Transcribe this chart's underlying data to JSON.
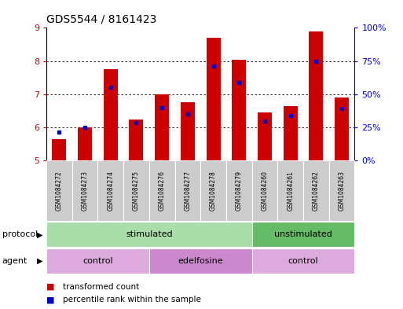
{
  "title": "GDS5544 / 8161423",
  "samples": [
    "GSM1084272",
    "GSM1084273",
    "GSM1084274",
    "GSM1084275",
    "GSM1084276",
    "GSM1084277",
    "GSM1084278",
    "GSM1084279",
    "GSM1084260",
    "GSM1084261",
    "GSM1084262",
    "GSM1084263"
  ],
  "red_values": [
    5.65,
    6.0,
    7.75,
    6.25,
    7.0,
    6.75,
    8.7,
    8.05,
    6.45,
    6.65,
    8.9,
    6.9
  ],
  "blue_values": [
    5.85,
    6.0,
    7.2,
    6.15,
    6.6,
    6.4,
    7.85,
    7.35,
    6.2,
    6.35,
    7.98,
    6.58
  ],
  "ymin": 5,
  "ymax": 9,
  "right_yticks": [
    0,
    25,
    50,
    75,
    100
  ],
  "right_yticklabels": [
    "0%",
    "25%",
    "50%",
    "75%",
    "100%"
  ],
  "bar_color": "#cc0000",
  "blue_color": "#0000cc",
  "protocol_groups": [
    {
      "label": "stimulated",
      "start": 0,
      "end": 7,
      "color": "#aaddaa"
    },
    {
      "label": "unstimulated",
      "start": 8,
      "end": 11,
      "color": "#66bb66"
    }
  ],
  "agent_groups": [
    {
      "label": "control",
      "start": 0,
      "end": 3,
      "color": "#ddaadd"
    },
    {
      "label": "edelfosine",
      "start": 4,
      "end": 7,
      "color": "#cc88cc"
    },
    {
      "label": "control",
      "start": 8,
      "end": 11,
      "color": "#ddaadd"
    }
  ],
  "protocol_label": "protocol",
  "agent_label": "agent",
  "legend_red": "transformed count",
  "legend_blue": "percentile rank within the sample",
  "tick_color_left": "#cc0000",
  "tick_color_right": "#0000cc",
  "gray_box_color": "#cccccc"
}
